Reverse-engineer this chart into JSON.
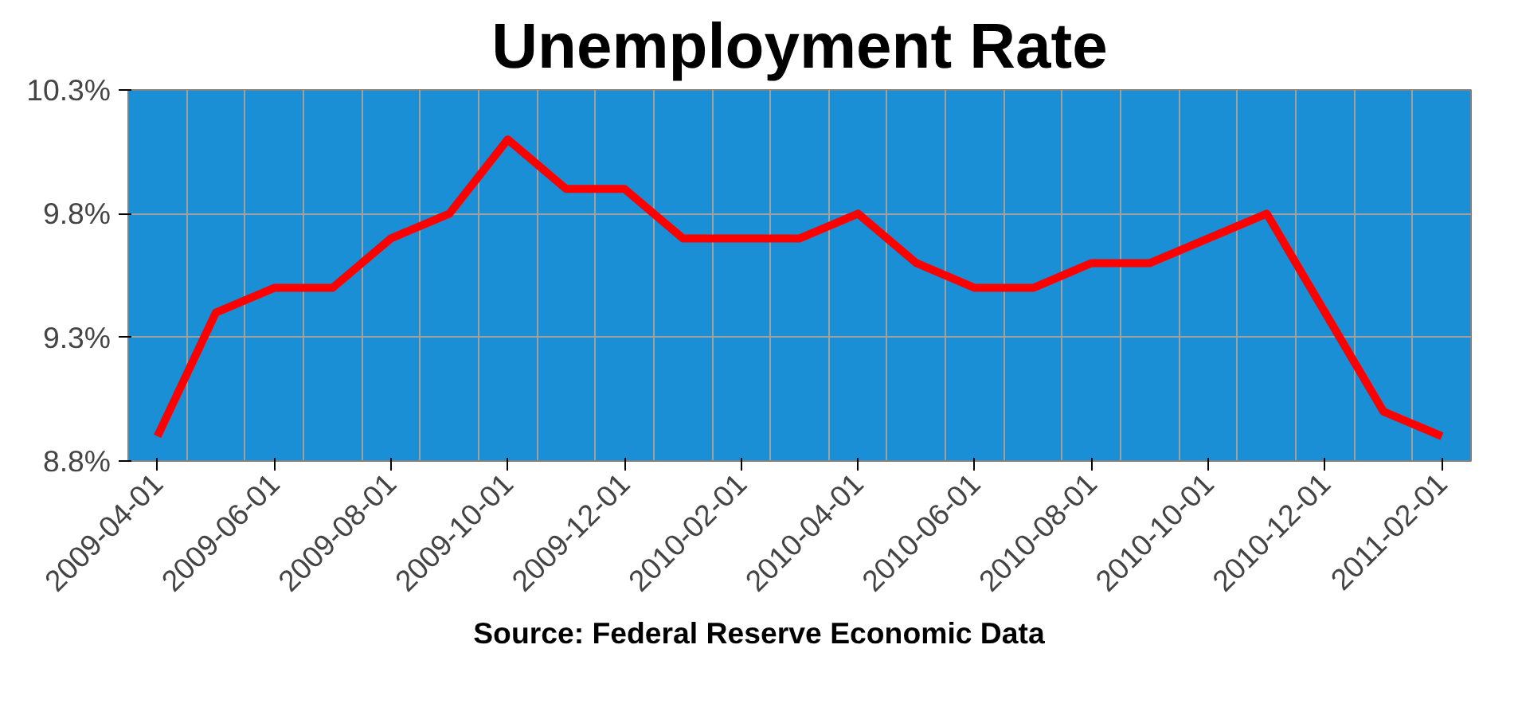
{
  "chart_data": {
    "type": "line",
    "title": "Unemployment Rate",
    "categories": [
      "2009-04-01",
      null,
      "2009-06-01",
      null,
      "2009-08-01",
      null,
      "2009-10-01",
      null,
      "2009-12-01",
      null,
      "2010-02-01",
      null,
      "2010-04-01",
      null,
      "2010-06-01",
      null,
      "2010-08-01",
      null,
      "2010-10-01",
      null,
      "2010-12-01",
      null,
      "2011-02-01"
    ],
    "series": [
      {
        "color": "#ff0000",
        "values": [
          8.9,
          9.4,
          9.5,
          9.5,
          9.7,
          9.8,
          10.1,
          9.9,
          9.9,
          9.7,
          9.7,
          9.7,
          9.8,
          9.6,
          9.5,
          9.5,
          9.6,
          9.6,
          9.7,
          9.8,
          9.4,
          9.0,
          8.9
        ]
      }
    ],
    "ylim": [
      8.8,
      10.3
    ],
    "yticks": [
      {
        "value": 8.8,
        "label": "8.8%"
      },
      {
        "value": 9.3,
        "label": "9.3%"
      },
      {
        "value": 9.8,
        "label": "9.8%"
      },
      {
        "value": 10.3,
        "label": "10.3%"
      }
    ],
    "grid": true,
    "marker": "none",
    "line_style": "solid",
    "annotations": [
      "Source: Federal Reserve Economic Data"
    ]
  }
}
